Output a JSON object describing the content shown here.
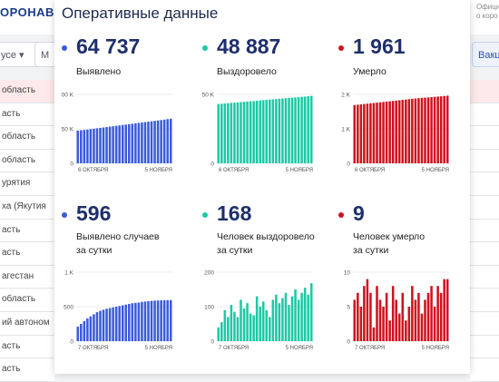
{
  "background": {
    "logo": "ОРОНАВИ",
    "official_lines": [
      "Офици",
      "о коро"
    ],
    "filter1": "усе ▾",
    "filter2": "М",
    "right_button": "Вакц",
    "list_items": [
      "область",
      "асть",
      "область",
      "область",
      "урятия",
      "ха (Якутия",
      "асть",
      "асть",
      "агестан",
      "область",
      "ий автоном",
      "асть",
      "асть"
    ]
  },
  "panel": {
    "title": "Оперативные данные"
  },
  "stats": [
    {
      "id": "detected",
      "value": "64 737",
      "label": "Выявлено",
      "color": "#3b5bdb"
    },
    {
      "id": "recovered",
      "value": "48 887",
      "label": "Выздоровело",
      "color": "#1ec8a5"
    },
    {
      "id": "died",
      "value": "1 961",
      "label": "Умерло",
      "color": "#d0121f"
    },
    {
      "id": "detected_daily",
      "value": "596",
      "label": "Выявлено случаев\nза сутки",
      "color": "#3b5bdb"
    },
    {
      "id": "recovered_daily",
      "value": "168",
      "label": "Человек выздоровело\nза сутки",
      "color": "#1ec8a5"
    },
    {
      "id": "died_daily",
      "value": "9",
      "label": "Человек умерло\nза сутки",
      "color": "#d0121f"
    }
  ],
  "chart_data": [
    {
      "type": "bar",
      "series_color": "#3b5bdb",
      "yticks": [
        "100 K",
        "50 K",
        "0"
      ],
      "ylim": [
        0,
        100000
      ],
      "xlabels": [
        "6 ОКТЯБРЯ",
        "5 НОЯБРЯ"
      ],
      "values": [
        47500,
        48000,
        48500,
        49000,
        49600,
        50200,
        50800,
        51400,
        52000,
        52600,
        53200,
        53800,
        54400,
        55000,
        55600,
        56200,
        56800,
        57400,
        58000,
        58600,
        59200,
        59800,
        60400,
        61000,
        61600,
        62200,
        62800,
        63400,
        64100,
        64737
      ]
    },
    {
      "type": "bar",
      "series_color": "#1ec8a5",
      "yticks": [
        "50 K",
        "0"
      ],
      "ylim": [
        0,
        50000
      ],
      "xlabels": [
        "6 ОКТЯБРЯ",
        "5 НОЯБРЯ"
      ],
      "values": [
        43000,
        43200,
        43400,
        43600,
        43800,
        44000,
        44200,
        44400,
        44600,
        44800,
        45000,
        45200,
        45400,
        45600,
        45800,
        46000,
        46200,
        46400,
        46600,
        46800,
        47000,
        47200,
        47400,
        47600,
        47800,
        48000,
        48200,
        48400,
        48650,
        48887
      ]
    },
    {
      "type": "bar",
      "series_color": "#d0121f",
      "yticks": [
        "2 K",
        "1 K",
        "0"
      ],
      "ylim": [
        0,
        2000
      ],
      "xlabels": [
        "6 ОКТЯБРЯ",
        "5 НОЯБРЯ"
      ],
      "values": [
        1690,
        1700,
        1710,
        1720,
        1730,
        1740,
        1750,
        1760,
        1770,
        1780,
        1790,
        1800,
        1810,
        1820,
        1830,
        1840,
        1850,
        1860,
        1870,
        1880,
        1890,
        1900,
        1905,
        1912,
        1920,
        1928,
        1936,
        1944,
        1952,
        1961
      ]
    },
    {
      "type": "bar",
      "series_color": "#3b5bdb",
      "yticks": [
        "1 K",
        "500",
        "0"
      ],
      "ylim": [
        0,
        1000
      ],
      "xlabels": [
        "7 ОКТЯБРЯ",
        "5 НОЯБРЯ"
      ],
      "values": [
        210,
        250,
        290,
        330,
        360,
        390,
        420,
        440,
        455,
        470,
        480,
        490,
        500,
        510,
        520,
        530,
        540,
        550,
        555,
        560,
        570,
        575,
        580,
        585,
        588,
        590,
        592,
        594,
        595,
        596
      ]
    },
    {
      "type": "bar",
      "series_color": "#1ec8a5",
      "yticks": [
        "200",
        "100",
        "0"
      ],
      "ylim": [
        0,
        200
      ],
      "xlabels": [
        "7 ОКТЯБРЯ",
        "5 НОЯБРЯ"
      ],
      "values": [
        40,
        55,
        90,
        70,
        105,
        85,
        70,
        120,
        95,
        110,
        80,
        75,
        130,
        100,
        115,
        90,
        70,
        120,
        135,
        110,
        125,
        140,
        105,
        130,
        150,
        120,
        140,
        155,
        135,
        168
      ]
    },
    {
      "type": "bar",
      "series_color": "#d0121f",
      "yticks": [
        "10",
        "5",
        "0"
      ],
      "ylim": [
        0,
        10
      ],
      "xlabels": [
        "7 ОКТЯБРЯ",
        "5 НОЯБРЯ"
      ],
      "values": [
        6,
        7,
        5,
        8,
        9,
        7,
        2,
        8,
        6,
        5,
        7,
        3,
        8,
        6,
        4,
        7,
        3,
        5,
        8,
        6,
        7,
        4,
        6,
        7,
        8,
        5,
        8,
        7,
        9,
        9
      ]
    }
  ]
}
